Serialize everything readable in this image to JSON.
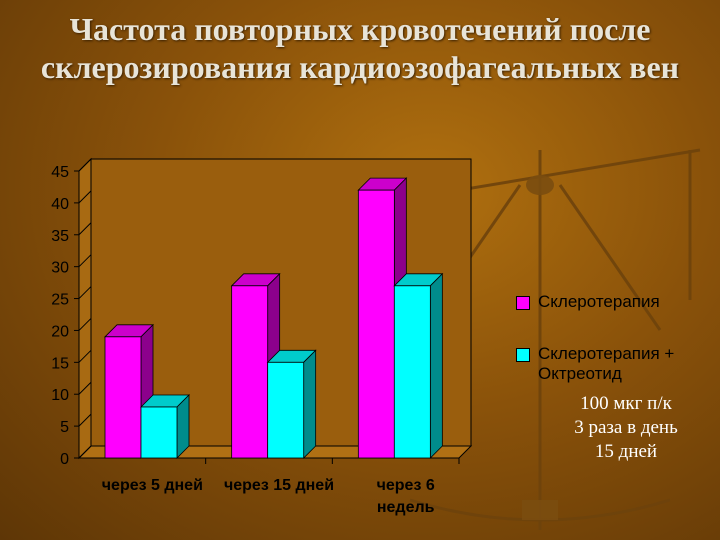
{
  "slide": {
    "title": "Частота повторных кровотечений после склерозирования кардиоэзофагеальных вен",
    "note_lines": [
      "100 мкг  п/к",
      "3 раза в день",
      "15 дней"
    ]
  },
  "chart_data": {
    "type": "bar",
    "title": "",
    "xlabel": "",
    "ylabel": "",
    "categories": [
      [
        "через 5 дней"
      ],
      [
        "через 15 дней"
      ],
      [
        "через 6",
        "недель"
      ]
    ],
    "series": [
      {
        "name": "Склеротерапия",
        "values": [
          19,
          27,
          42
        ],
        "color": "#ff00ff"
      },
      {
        "name": "Склеротерапия + Октреотид",
        "values": [
          8,
          15,
          27
        ],
        "color": "#00ffff"
      }
    ],
    "ylim": [
      0,
      45
    ],
    "yticks": [
      0,
      5,
      10,
      15,
      20,
      25,
      30,
      35,
      40,
      45
    ],
    "grid": false,
    "legend": "right"
  }
}
